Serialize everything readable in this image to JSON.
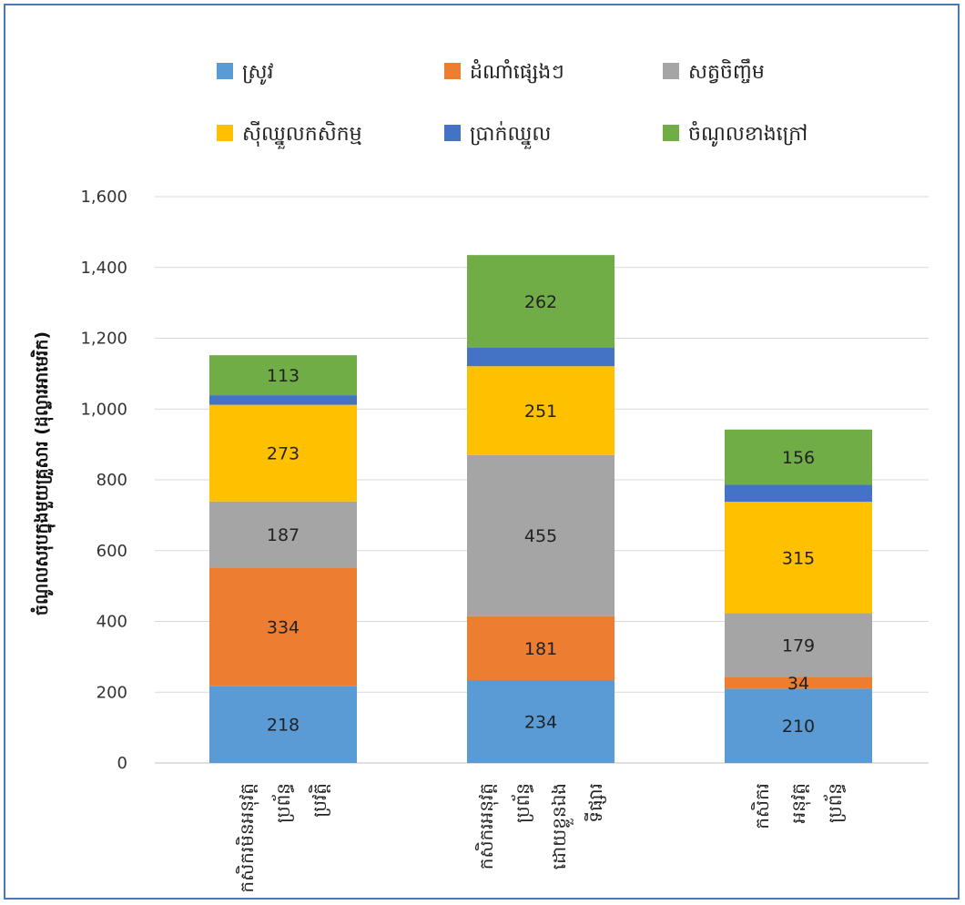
{
  "chart_data": {
    "type": "bar",
    "stacked": true,
    "title": "",
    "xlabel": "",
    "ylabel": "ចំណូលសរុបក្នុងមួយគ្រួសារ (ដុល្លារអាមេរិក)",
    "ylim": [
      0,
      1600
    ],
    "yticks": [
      0,
      200,
      400,
      600,
      800,
      1000,
      1200,
      1400,
      1600
    ],
    "ytick_labels": [
      "0",
      "200",
      "400",
      "600",
      "800",
      "1,000",
      "1,200",
      "1,400",
      "1,600"
    ],
    "grid": true,
    "legend_position": "top",
    "categories": [
      [
        "កសិករមិនអនុវត្ត",
        "ប្រព័ន្ធ",
        "ប្រវត្តិ"
      ],
      [
        "កសិករអនុវត្ត",
        "ប្រព័ន្ធ",
        "ដោយខ្លួនឯង",
        "ទីផ្សារ"
      ],
      [
        "កសិករ",
        "អនុវត្ត",
        "ប្រព័ន្ធ"
      ]
    ],
    "series": [
      {
        "name": "ស្រូវ",
        "color": "#5b9bd5",
        "values": [
          218,
          234,
          210
        ]
      },
      {
        "name": "ដំណាំផ្សេងៗ",
        "color": "#ed7d31",
        "values": [
          334,
          181,
          34
        ]
      },
      {
        "name": "សត្វចិញ្ចឹម",
        "color": "#a5a5a5",
        "values": [
          187,
          455,
          179
        ]
      },
      {
        "name": "ស៊ីឈ្នួលកសិកម្ម",
        "color": "#ffc000",
        "values": [
          273,
          251,
          315
        ]
      },
      {
        "name": "ប្រាក់ឈ្នួល",
        "color": "#4472c4",
        "values": [
          27,
          52,
          48
        ]
      },
      {
        "name": "ចំណូលខាងក្រៅ",
        "color": "#70ad47",
        "values": [
          113,
          262,
          156
        ]
      }
    ],
    "data_labels": [
      [
        "218",
        "334",
        "187",
        "273",
        "",
        "113"
      ],
      [
        "234",
        "181",
        "455",
        "251",
        "",
        "262"
      ],
      [
        "210",
        "34",
        "179",
        "315",
        "",
        "156"
      ]
    ]
  }
}
